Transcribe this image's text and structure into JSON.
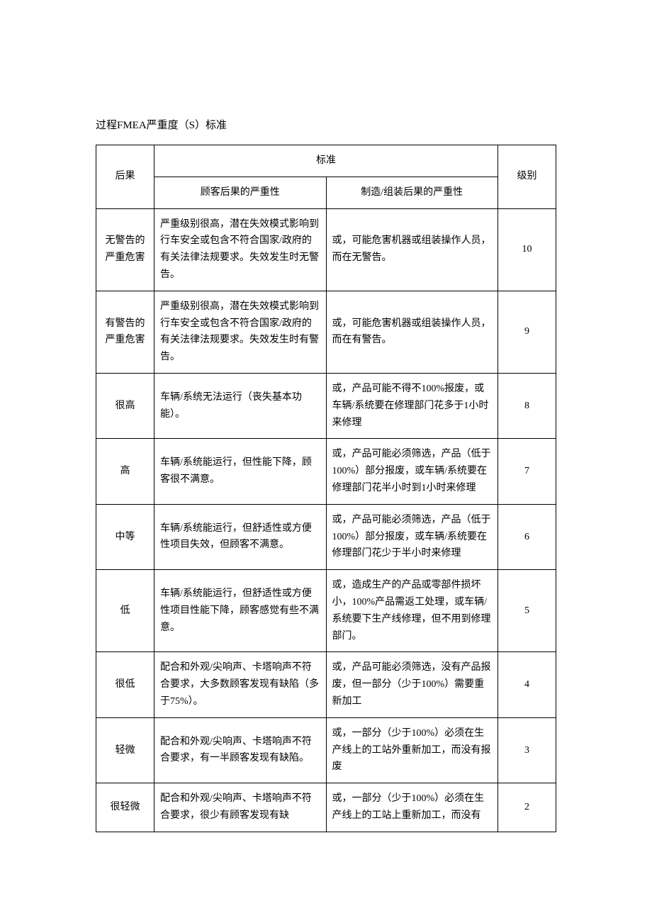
{
  "document": {
    "title": "过程FMEA严重度（S）标准",
    "table": {
      "headers": {
        "consequence": "后果",
        "standard": "标准",
        "customer_severity": "顾客后果的严重性",
        "manufacturing_severity": "制造/组装后果的严重性",
        "rank": "级别"
      },
      "rows": [
        {
          "consequence": "无警告的严重危害",
          "customer": "严重级别很高，潜在失效模式影响到行车安全或包含不符合国家/政府的有关法律法规要求。失效发生时无警告。",
          "manufacturing": "或，可能危害机器或组装操作人员，而在无警告。",
          "rank": "10"
        },
        {
          "consequence": "有警告的严重危害",
          "customer": "严重级别很高，潜在失效模式影响到行车安全或包含不符合国家/政府的有关法律法规要求。失效发生时有警告。",
          "manufacturing": "或，可能危害机器或组装操作人员，而在有警告。",
          "rank": "9"
        },
        {
          "consequence": "很高",
          "customer": "车辆/系统无法运行（丧失基本功能）。",
          "manufacturing": "或，产品可能不得不100%报废，或车辆/系统要在修理部门花多于1小时来修理",
          "rank": "8"
        },
        {
          "consequence": "高",
          "customer": "车辆/系统能运行，但性能下降，顾客很不满意。",
          "manufacturing": "或，产品可能必须筛选，产品（低于100%）部分报废，或车辆/系统要在修理部门花半小时到1小时来修理",
          "rank": "7"
        },
        {
          "consequence": "中等",
          "customer": "车辆/系统能运行，但舒适性或方便性项目失效，但顾客不满意。",
          "manufacturing": "或，产品可能必须筛选，产品（低于100%）部分报废，或车辆/系统要在修理部门花少于半小时来修理",
          "rank": "6"
        },
        {
          "consequence": "低",
          "customer": "车辆/系统能运行，但舒适性或方便性项目性能下降，顾客感觉有些不满意。",
          "manufacturing": "或，造成生产的产品或零部件损坏小，100%产品需返工处理，或车辆/系统要下生产线修理，但不用到修理部门。",
          "rank": "5"
        },
        {
          "consequence": "很低",
          "customer": "配合和外观/尖响声、卡塔响声不符合要求，大多数顾客发现有缺陷（多于75%）。",
          "manufacturing": "或，产品可能必须筛选，没有产品报废，但一部分（少于100%）需要重新加工",
          "rank": "4"
        },
        {
          "consequence": "轻微",
          "customer": "配合和外观/尖响声、卡塔响声不符合要求，有一半顾客发现有缺陷。",
          "manufacturing": "或，一部分（少于100%）必须在生产线上的工站外重新加工，而没有报废",
          "rank": "3"
        },
        {
          "consequence": "很轻微",
          "customer": "配合和外观/尖响声、卡塔响声不符合要求，很少有顾客发现有缺",
          "manufacturing": "或，一部分（少于100%）必须在生产线上的工站上重新加工，而没有",
          "rank": "2"
        }
      ]
    },
    "styling": {
      "background_color": "#ffffff",
      "text_color": "#000000",
      "border_color": "#000000",
      "font_family": "SimSun",
      "title_fontsize": 15,
      "cell_fontsize": 14,
      "line_height": 1.7,
      "column_widths": {
        "consequence": 82,
        "customer": 243,
        "manufacturing": 243,
        "rank": 82
      }
    }
  }
}
